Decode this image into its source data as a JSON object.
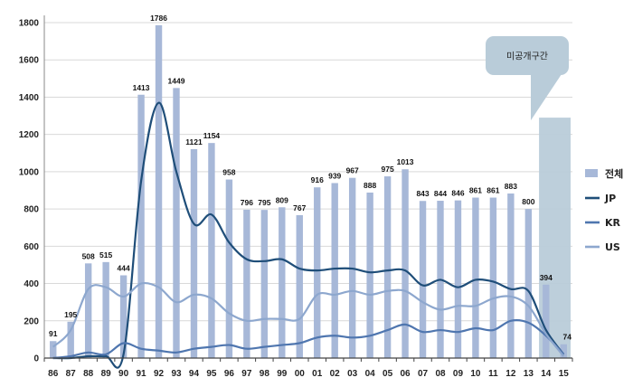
{
  "chart_data": {
    "type": "bar",
    "categories": [
      "86",
      "87",
      "88",
      "89",
      "90",
      "91",
      "92",
      "93",
      "94",
      "95",
      "96",
      "97",
      "98",
      "99",
      "00",
      "01",
      "02",
      "03",
      "04",
      "05",
      "06",
      "07",
      "08",
      "09",
      "10",
      "11",
      "12",
      "13",
      "14",
      "15"
    ],
    "ylim": [
      0,
      1800
    ],
    "yticks": [
      0,
      200,
      400,
      600,
      800,
      1000,
      1200,
      1400,
      1600,
      1800
    ],
    "grid": "horizontal",
    "legend_position": "right",
    "series": [
      {
        "name": "전체",
        "kind": "bar",
        "color": "#A7B8D8",
        "values": [
          91,
          195,
          508,
          515,
          444,
          1413,
          1786,
          1449,
          1121,
          1154,
          958,
          796,
          795,
          809,
          767,
          916,
          939,
          967,
          888,
          975,
          1013,
          843,
          844,
          846,
          861,
          861,
          883,
          800,
          394,
          74
        ],
        "labels": [
          "91",
          "195",
          "508",
          "515",
          "444",
          "1413",
          "1786",
          "1449",
          "1121",
          "1154",
          "958",
          "796",
          "795",
          "809",
          "767",
          "916",
          "939",
          "967",
          "888",
          "975",
          "1013",
          "843",
          "844",
          "846",
          "861",
          "861",
          "883",
          "800",
          "394",
          "74"
        ]
      },
      {
        "name": "JP",
        "kind": "line",
        "color": "#1F4E79",
        "values": [
          0,
          0,
          10,
          10,
          20,
          950,
          1370,
          1000,
          720,
          770,
          620,
          530,
          520,
          530,
          480,
          470,
          480,
          480,
          460,
          470,
          470,
          390,
          420,
          380,
          420,
          410,
          370,
          360,
          150,
          20
        ]
      },
      {
        "name": "KR",
        "kind": "line",
        "color": "#4F76AF",
        "values": [
          0,
          10,
          30,
          20,
          80,
          50,
          40,
          30,
          50,
          60,
          70,
          50,
          60,
          70,
          80,
          110,
          120,
          110,
          120,
          150,
          180,
          140,
          150,
          140,
          160,
          150,
          200,
          190,
          120,
          20
        ]
      },
      {
        "name": "US",
        "kind": "line",
        "color": "#8DA7CE",
        "values": [
          60,
          150,
          370,
          380,
          330,
          400,
          380,
          300,
          340,
          320,
          240,
          200,
          210,
          210,
          210,
          340,
          340,
          360,
          340,
          360,
          360,
          300,
          260,
          280,
          280,
          320,
          330,
          280,
          130,
          10
        ]
      }
    ],
    "annotation": {
      "text": "미공개구간",
      "categories": [
        "14",
        "15"
      ],
      "fill_value": 1290,
      "color": "#B9CCD9"
    }
  }
}
